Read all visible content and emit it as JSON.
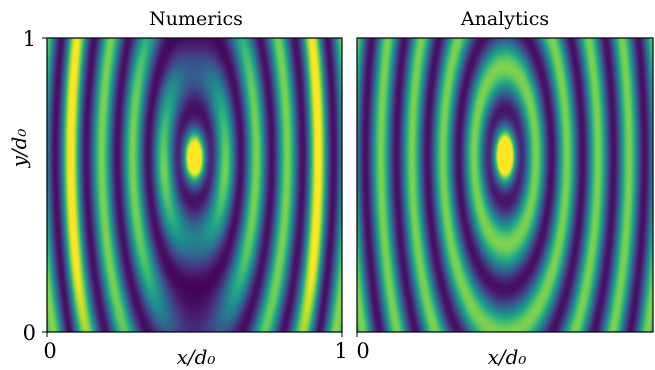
{
  "chart_data": [
    {
      "type": "heatmap",
      "title": "Numerics",
      "xlabel": "x/d₀",
      "ylabel": "y/d₀",
      "xlim": [
        0,
        1
      ],
      "ylim": [
        0,
        1
      ],
      "xticks": [
        "0",
        "1"
      ],
      "yticks": [
        "0",
        "1"
      ],
      "colormap": "viridis",
      "pattern": "vertical interference fringes; dark minimum along center line x≈0.5 at top and bottom, bright focus near y≈0.6"
    },
    {
      "type": "heatmap",
      "title": "Analytics",
      "xlabel": "x/d₀",
      "xlim": [
        0,
        1
      ],
      "ylim": [
        0,
        1
      ],
      "xticks": [
        "0",
        "1"
      ],
      "colormap": "viridis",
      "pattern": "regular vertical fringes bending around central focus at x≈0.5, y≈0.6"
    }
  ],
  "colors": {
    "viridis_low": "#440154",
    "viridis_mid": "#21918c",
    "viridis_high": "#fde725"
  }
}
